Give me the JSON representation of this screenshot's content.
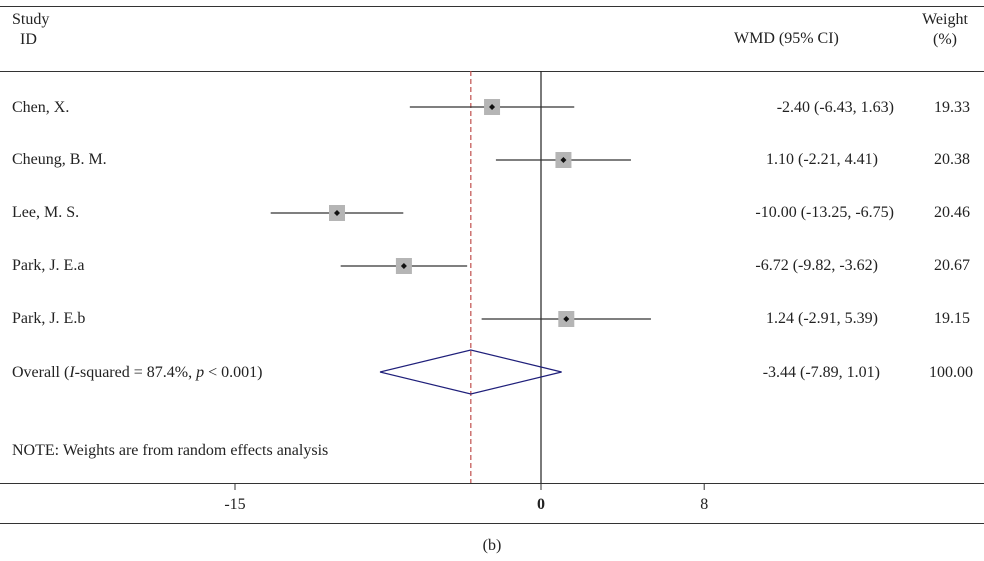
{
  "header": {
    "study_line1": "Study",
    "study_line2": "ID",
    "effect_label": "WMD (95% CI)",
    "weight_line1": "Weight",
    "weight_line2": "(%)"
  },
  "note": "NOTE: Weights are from random effects analysis",
  "caption": "(b)",
  "colors": {
    "square": "#b5b5b5",
    "diamond": "#1f1f7a",
    "dashed_line": "#c0504d",
    "axis": "#222222"
  },
  "chart_data": {
    "type": "forest",
    "xlim": [
      -19.5,
      10.5
    ],
    "xticks": [
      -15,
      0,
      8
    ],
    "xtick_labels": [
      "-15",
      "0",
      "8"
    ],
    "null_line": 0,
    "pooled_line": -3.44,
    "studies": [
      {
        "name": "Chen, X.",
        "estimate": -2.4,
        "lower": -6.43,
        "upper": 1.63,
        "ci_text": "-2.40 (-6.43, 1.63)",
        "weight": 19.33,
        "weight_text": "19.33"
      },
      {
        "name": "Cheung, B. M.",
        "estimate": 1.1,
        "lower": -2.21,
        "upper": 4.41,
        "ci_text": "1.10 (-2.21, 4.41)",
        "weight": 20.38,
        "weight_text": "20.38"
      },
      {
        "name": "Lee, M. S.",
        "estimate": -10.0,
        "lower": -13.25,
        "upper": -6.75,
        "ci_text": "-10.00 (-13.25, -6.75)",
        "weight": 20.46,
        "weight_text": "20.46"
      },
      {
        "name": "Park, J. E.a",
        "estimate": -6.72,
        "lower": -9.82,
        "upper": -3.62,
        "ci_text": "-6.72 (-9.82, -3.62)",
        "weight": 20.67,
        "weight_text": "20.67"
      },
      {
        "name": "Park, J. E.b",
        "estimate": 1.24,
        "lower": -2.91,
        "upper": 5.39,
        "ci_text": "1.24 (-2.91, 5.39)",
        "weight": 19.15,
        "weight_text": "19.15"
      }
    ],
    "overall": {
      "label_prefix": "Overall (",
      "label_i": "I",
      "label_mid": "-squared = 87.4%, ",
      "label_p": "p",
      "label_suffix": " < 0.001)",
      "estimate": -3.44,
      "lower": -7.89,
      "upper": 1.01,
      "ci_text": "-3.44 (-7.89, 1.01)",
      "weight_text": "100.00"
    }
  }
}
